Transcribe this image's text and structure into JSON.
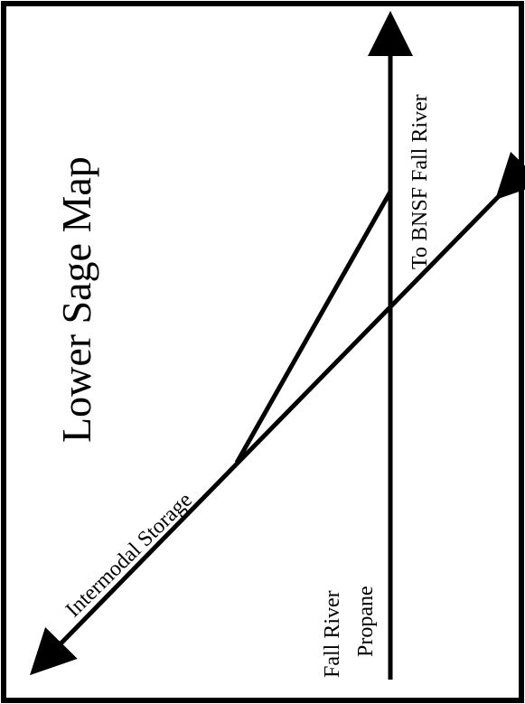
{
  "diagram": {
    "title": "Lower Sage Map",
    "labels": {
      "destination": "To BNSF Fall River",
      "storage": "Intermodal Storage",
      "propane_line1": "Fall River",
      "propane_line2": "Propane"
    },
    "colors": {
      "line": "#000000",
      "background": "#ffffff",
      "frame": "#000000"
    }
  }
}
